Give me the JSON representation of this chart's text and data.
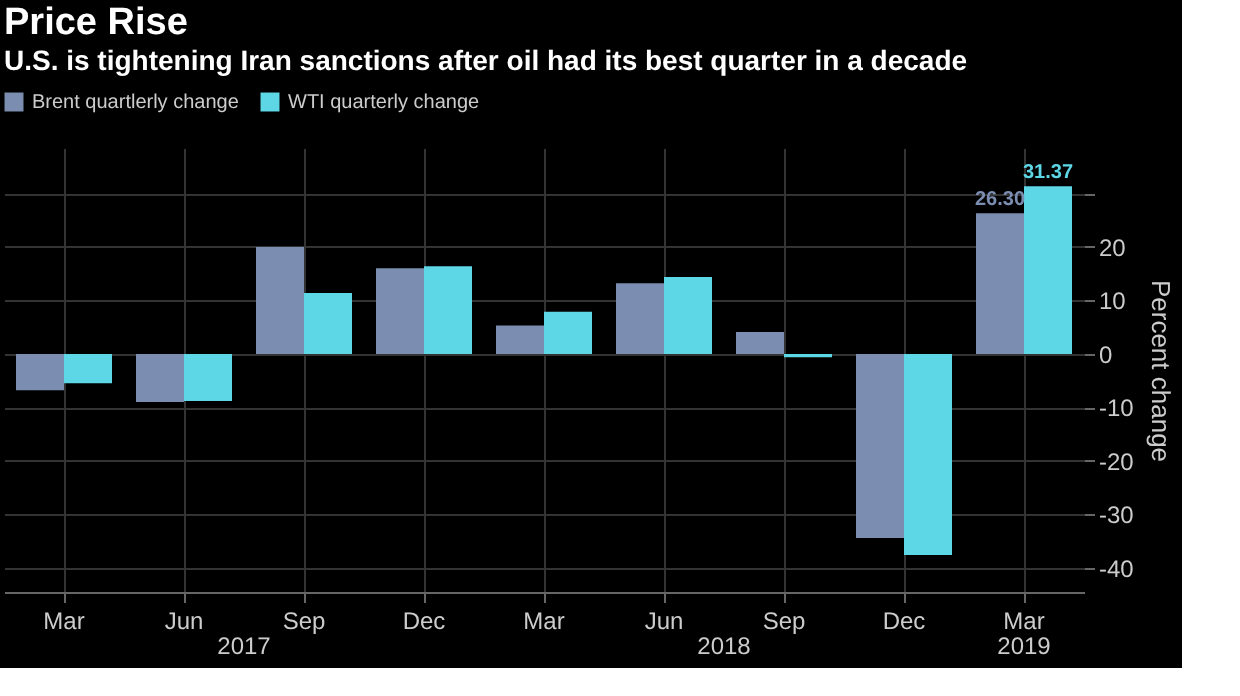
{
  "chart_data": {
    "type": "bar",
    "title": "Price Rise",
    "subtitle": "U.S. is tightening Iran sanctions after oil had its best quarter in a decade",
    "ylabel": "Percent change",
    "categories": [
      "Mar",
      "Jun",
      "Sep",
      "Dec",
      "Mar",
      "Jun",
      "Sep",
      "Dec",
      "Mar"
    ],
    "series": [
      {
        "name": "Brent quartlerly change",
        "color": "#7b8db0",
        "values": [
          -6.8,
          -9.0,
          20.0,
          16.0,
          5.3,
          13.2,
          4.1,
          -34.4,
          26.3
        ],
        "value_labels": [
          null,
          null,
          null,
          null,
          null,
          null,
          null,
          null,
          "26.30"
        ]
      },
      {
        "name": "WTI quarterly change",
        "color": "#5dd6e6",
        "values": [
          -5.5,
          -8.8,
          11.4,
          16.4,
          7.9,
          14.4,
          -0.6,
          -37.6,
          31.37
        ],
        "value_labels": [
          null,
          null,
          null,
          null,
          null,
          null,
          null,
          null,
          "31.37"
        ]
      }
    ],
    "ylim": [
      -44.5,
      38.5
    ],
    "yticks": [
      -40,
      -30,
      -20,
      -10,
      0,
      10,
      20,
      {
        "value": 30,
        "label": null
      }
    ],
    "annotations": [
      "2017",
      "2018",
      "2019"
    ],
    "grid": true,
    "legend": "top left"
  }
}
